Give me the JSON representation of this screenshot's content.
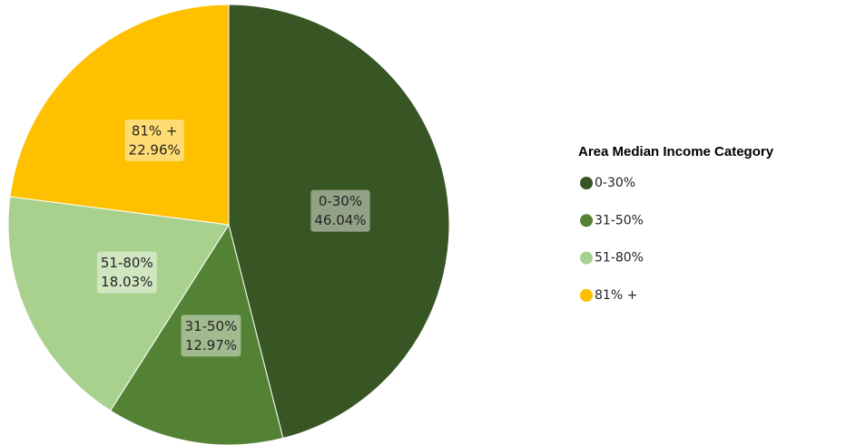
{
  "chart_data": {
    "type": "pie",
    "legend_title": "Area Median Income Category",
    "categories": [
      "0-30%",
      "31-50%",
      "51-80%",
      "81% +"
    ],
    "values": [
      46.04,
      12.97,
      18.03,
      22.96
    ],
    "value_labels": [
      "46.04%",
      "12.97%",
      "18.03%",
      "22.96%"
    ],
    "colors": [
      "#375623",
      "#548235",
      "#a9d18e",
      "#ffc000"
    ],
    "legend": "right"
  }
}
